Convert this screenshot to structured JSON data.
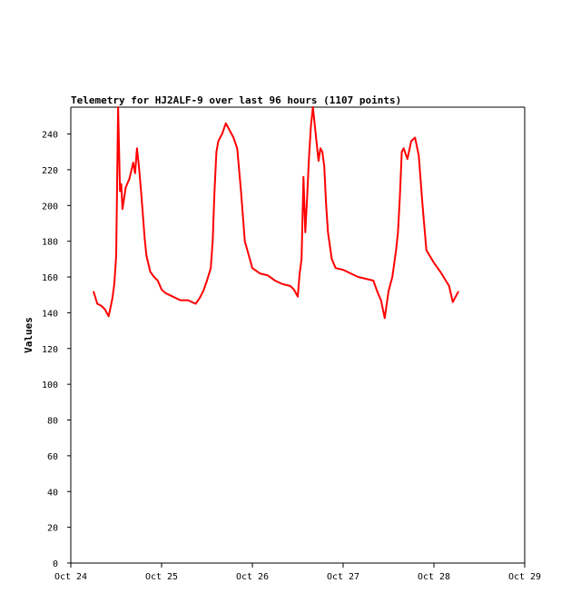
{
  "chart_data": {
    "type": "line",
    "title": "Telemetry for HJ2ALF-9 over last 96 hours (1107 points)",
    "xlabel": "",
    "ylabel": "Values",
    "xlim": [
      "Oct 24",
      "Oct 29"
    ],
    "ylim": [
      0,
      255
    ],
    "x_ticks": [
      "Oct 24",
      "Oct 25",
      "Oct 26",
      "Oct 27",
      "Oct 28",
      "Oct 29"
    ],
    "y_ticks": [
      0,
      20,
      40,
      60,
      80,
      100,
      120,
      140,
      160,
      180,
      200,
      220,
      240
    ],
    "grid": false,
    "legend": "none",
    "series": [
      {
        "color": "#ff0000",
        "x": [
          "Oct 24 06:00",
          "Oct 24 07:00",
          "Oct 24 08:00",
          "Oct 24 09:00",
          "Oct 24 10:00",
          "Oct 24 11:00",
          "Oct 24 11:30",
          "Oct 24 12:00",
          "Oct 24 12:30",
          "Oct 24 13:00",
          "Oct 24 13:20",
          "Oct 24 13:40",
          "Oct 24 14:10",
          "Oct 24 14:30",
          "Oct 24 15:30",
          "Oct 24 16:30",
          "Oct 24 17:00",
          "Oct 24 17:30",
          "Oct 24 18:00",
          "Oct 24 18:30",
          "Oct 24 19:00",
          "Oct 24 19:30",
          "Oct 24 20:00",
          "Oct 24 21:00",
          "Oct 24 22:00",
          "Oct 24 23:00",
          "Oct 25 00:00",
          "Oct 25 01:00",
          "Oct 25 03:00",
          "Oct 25 05:00",
          "Oct 25 07:00",
          "Oct 25 09:00",
          "Oct 25 10:00",
          "Oct 25 11:00",
          "Oct 25 12:00",
          "Oct 25 13:00",
          "Oct 25 13:30",
          "Oct 25 14:00",
          "Oct 25 14:30",
          "Oct 25 15:00",
          "Oct 25 16:00",
          "Oct 25 17:00",
          "Oct 25 18:00",
          "Oct 25 19:00",
          "Oct 25 20:00",
          "Oct 25 21:00",
          "Oct 25 22:00",
          "Oct 26 00:00",
          "Oct 26 02:00",
          "Oct 26 04:00",
          "Oct 26 06:00",
          "Oct 26 08:00",
          "Oct 26 10:00",
          "Oct 26 11:00",
          "Oct 26 12:00",
          "Oct 26 12:30",
          "Oct 26 13:00",
          "Oct 26 13:30",
          "Oct 26 14:00",
          "Oct 26 14:30",
          "Oct 26 15:00",
          "Oct 26 15:30",
          "Oct 26 16:00",
          "Oct 26 17:00",
          "Oct 26 17:30",
          "Oct 26 18:00",
          "Oct 26 18:30",
          "Oct 26 19:00",
          "Oct 26 19:30",
          "Oct 26 20:00",
          "Oct 26 21:00",
          "Oct 26 22:00",
          "Oct 27 00:00",
          "Oct 27 02:00",
          "Oct 27 04:00",
          "Oct 27 06:00",
          "Oct 27 08:00",
          "Oct 27 09:00",
          "Oct 27 10:00",
          "Oct 27 11:00",
          "Oct 27 12:00",
          "Oct 27 13:00",
          "Oct 27 14:00",
          "Oct 27 14:30",
          "Oct 27 15:00",
          "Oct 27 15:30",
          "Oct 27 16:00",
          "Oct 27 17:00",
          "Oct 27 18:00",
          "Oct 27 19:00",
          "Oct 27 20:00",
          "Oct 27 21:00",
          "Oct 27 22:00",
          "Oct 28 00:00",
          "Oct 28 02:00",
          "Oct 28 04:00",
          "Oct 28 05:00",
          "Oct 28 06:00",
          "Oct 28 06:30"
        ],
        "values": [
          152,
          145,
          144,
          142,
          138,
          148,
          156,
          172,
          255,
          208,
          212,
          198,
          205,
          210,
          215,
          224,
          218,
          232,
          222,
          210,
          196,
          182,
          172,
          163,
          160,
          158,
          153,
          151,
          149,
          147,
          147,
          145,
          148,
          152,
          158,
          165,
          180,
          208,
          230,
          236,
          240,
          246,
          242,
          238,
          232,
          208,
          180,
          165,
          162,
          161,
          158,
          156,
          155,
          153,
          149,
          162,
          170,
          216,
          185,
          205,
          228,
          245,
          255,
          235,
          225,
          232,
          230,
          222,
          200,
          185,
          170,
          165,
          164,
          162,
          160,
          159,
          158,
          152,
          147,
          137,
          152,
          160,
          175,
          185,
          205,
          230,
          232,
          226,
          236,
          238,
          228,
          200,
          175,
          168,
          162,
          155,
          146,
          150,
          152
        ]
      }
    ]
  }
}
